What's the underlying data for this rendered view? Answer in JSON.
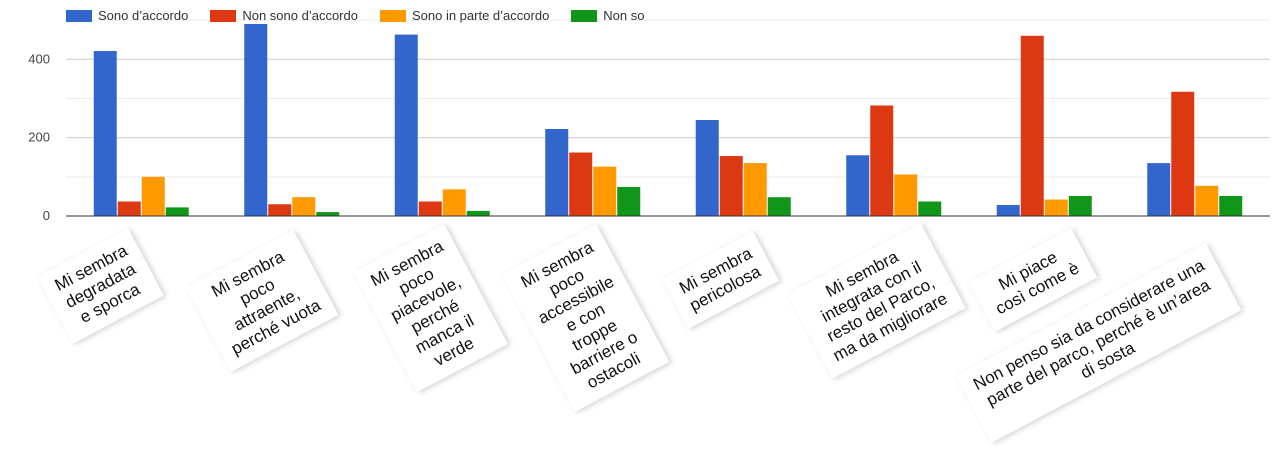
{
  "chart_data": {
    "type": "bar",
    "categories": [
      "Mi sembra\ndegradata\ne sporca",
      "Mi sembra\npoco\nattraente,\nperché vuota",
      "Mi sembra\npoco\npiacevole,\nperché\nmanca il\nverde",
      "Mi sembra\npoco\naccessibile\ne con\ntroppe\nbarriere o\nostacoli",
      "Mi sembra\npericolosa",
      "Mi sembra\nintegrata con il\nresto del Parco,\nma da migliorare",
      "Mi piace\ncosì come è",
      "Non penso sia da considerare una\nparte del parco, perché è un’area\ndi sosta"
    ],
    "series": [
      {
        "name": "Sono d’accordo",
        "color": "#3366cc",
        "values": [
          421,
          490,
          463,
          222,
          245,
          155,
          28,
          135
        ]
      },
      {
        "name": "Non sono d’accordo",
        "color": "#dc3912",
        "values": [
          37,
          30,
          37,
          162,
          153,
          282,
          460,
          317
        ]
      },
      {
        "name": "Sono in parte d’accordo",
        "color": "#ff9900",
        "values": [
          100,
          48,
          68,
          126,
          135,
          106,
          42,
          77
        ]
      },
      {
        "name": "Non so",
        "color": "#109618",
        "values": [
          22,
          10,
          13,
          74,
          48,
          37,
          51,
          51
        ]
      }
    ],
    "yticks": [
      0,
      200,
      400
    ],
    "ylim": [
      0,
      490
    ],
    "grid": true,
    "legend_position": "top-left"
  }
}
